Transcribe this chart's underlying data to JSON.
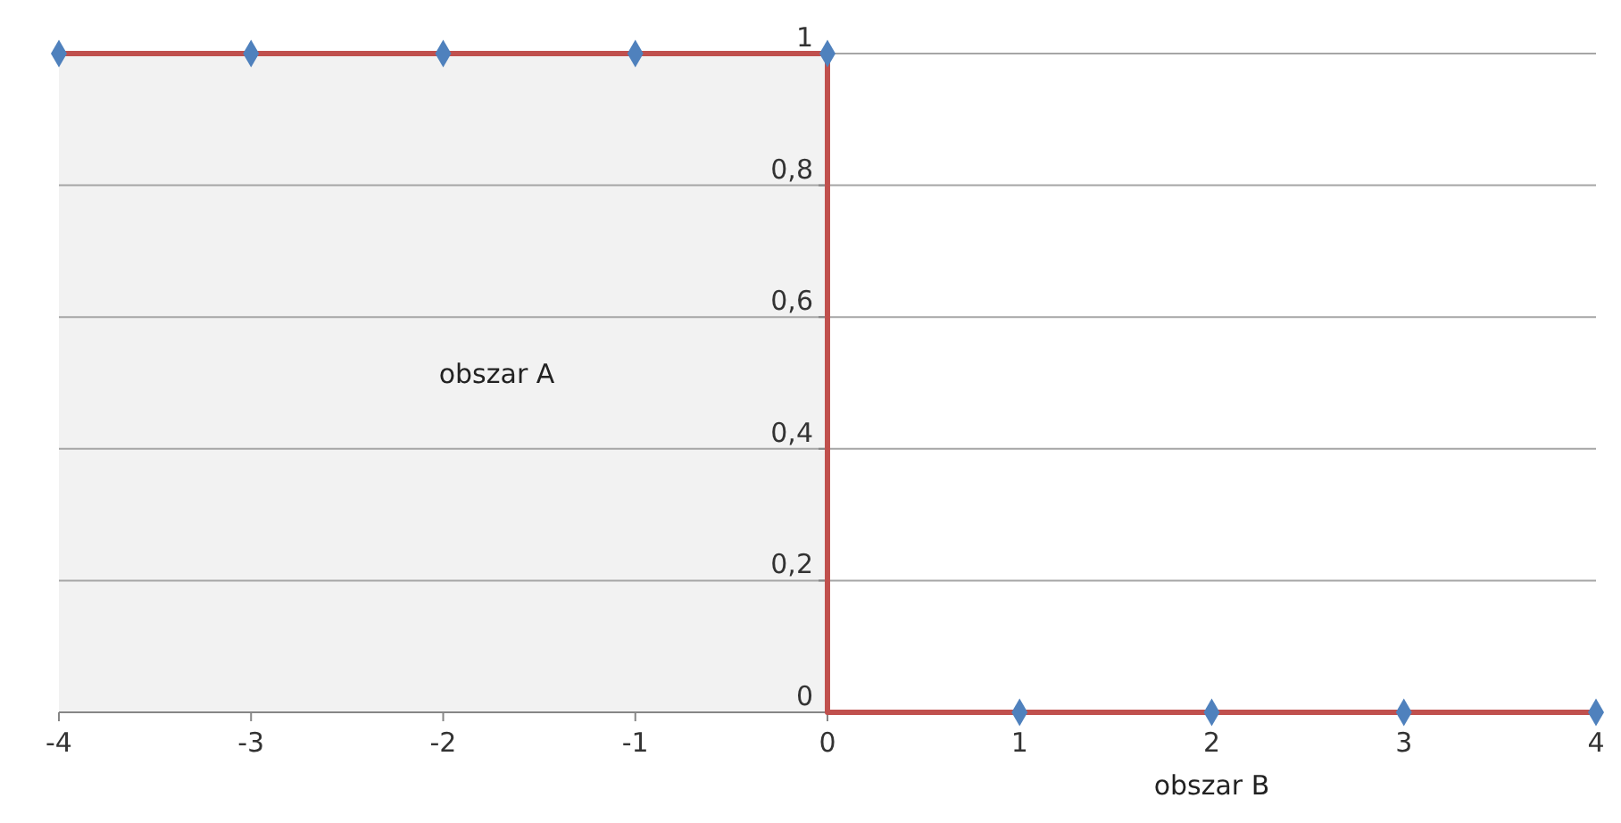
{
  "chart_data": {
    "type": "line",
    "xlim": [
      -4,
      4
    ],
    "xticks": [
      -4,
      -3,
      -2,
      -1,
      0,
      1,
      2,
      3,
      4
    ],
    "ylim": [
      0,
      1
    ],
    "yticks": [
      {
        "value": 0,
        "label": "0"
      },
      {
        "value": 0.2,
        "label": "0,2"
      },
      {
        "value": 0.4,
        "label": "0,4"
      },
      {
        "value": 0.6,
        "label": "0,6"
      },
      {
        "value": 0.8,
        "label": "0,8"
      },
      {
        "value": 1,
        "label": "1"
      }
    ],
    "grid": "y",
    "series": [
      {
        "color": "#c0504d",
        "marker": "none",
        "x": [
          -4,
          -3,
          -2,
          -1,
          0,
          0,
          1,
          2,
          3,
          4
        ],
        "values": [
          1,
          1,
          1,
          1,
          1,
          0,
          0,
          0,
          0,
          0
        ]
      },
      {
        "type": "scatter",
        "color": "#4f81bd",
        "marker": "diamond",
        "x": [
          -4,
          -3,
          -2,
          -1,
          0,
          1,
          2,
          3,
          4
        ],
        "values": [
          1,
          1,
          1,
          1,
          1,
          0,
          0,
          0,
          0
        ]
      }
    ],
    "bands": [
      {
        "axis": "x",
        "from": -4,
        "to": 0,
        "label": "obszar A",
        "color": "#f2f2f2"
      }
    ],
    "annotations": [
      {
        "text": "obszar B",
        "x": 2,
        "y": 0
      }
    ]
  }
}
